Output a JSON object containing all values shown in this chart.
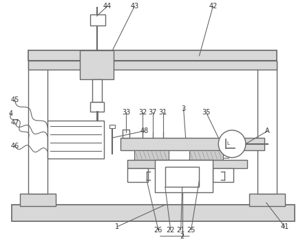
{
  "line_color": "#666666",
  "fill_gray": "#d8d8d8",
  "fill_light": "#eeeeee",
  "white": "#ffffff",
  "hatch_color": "#aaaaaa"
}
